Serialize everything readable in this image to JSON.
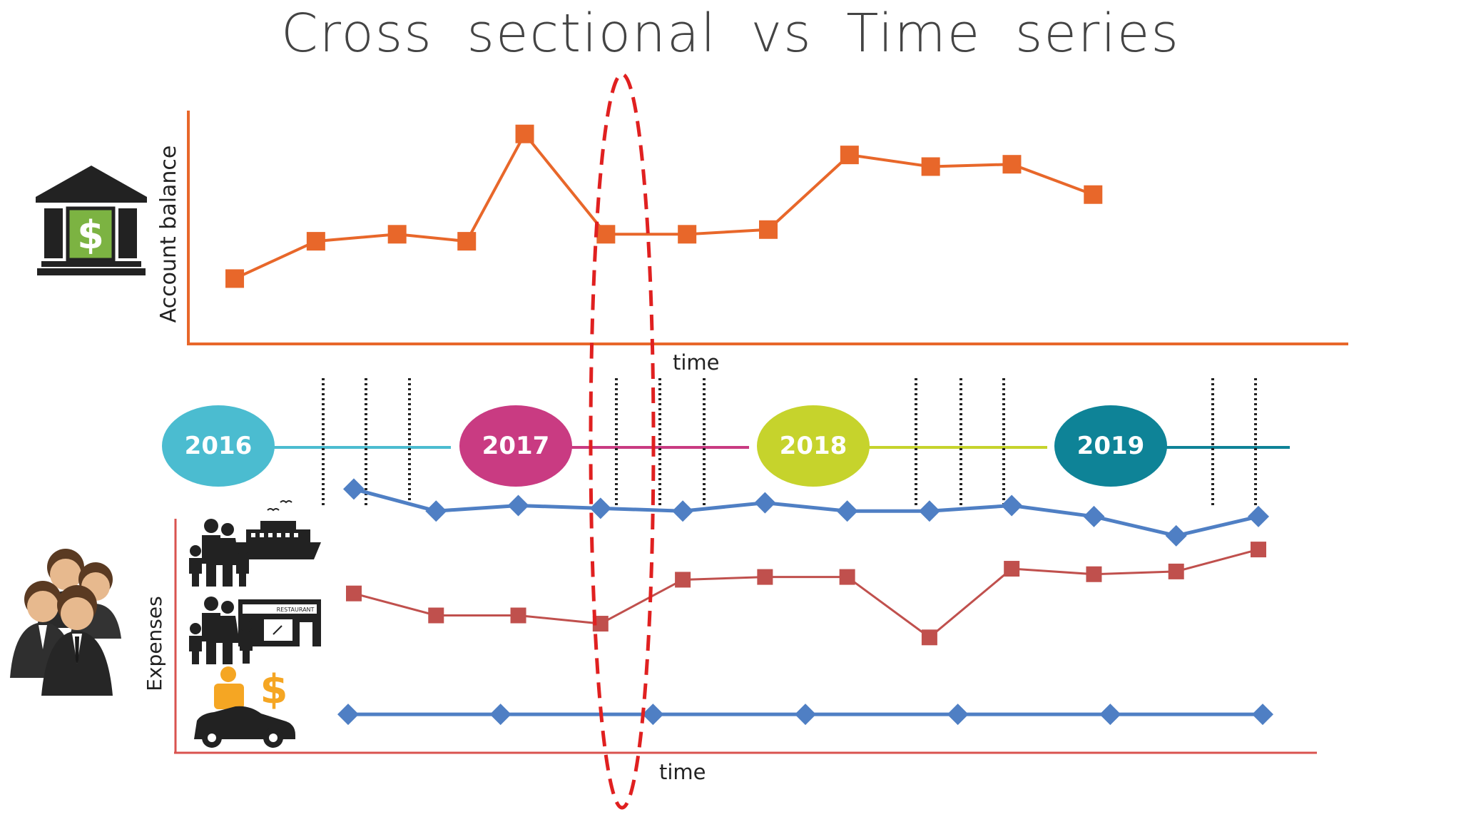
{
  "title": "Cross sectional vs Time series",
  "colors": {
    "balance": "#e8672a",
    "axis_top": "#e8672a",
    "axis_bottom": "#d9534f",
    "series_blue": "#4f7fc4",
    "series_red": "#c0504d",
    "highlight": "#e02020",
    "year_2016": "#4bbcd0",
    "year_2017": "#c93b82",
    "year_2018": "#c6d32c",
    "year_2019": "#0e8397",
    "icon_dark": "#222222",
    "icon_money": "#7cb342",
    "icon_orange": "#f5a623"
  },
  "chart_top": {
    "ylabel": "Account balance",
    "xlabel": "time"
  },
  "timeline": {
    "years": [
      "2016",
      "2017",
      "2018",
      "2019"
    ]
  },
  "chart_bottom": {
    "ylabel": "Expenses",
    "xlabel": "time"
  },
  "icons": {
    "bank": "bank-building-dollar-icon",
    "people": "business-people-group-icon",
    "travel": "family-cruise-ship-icon",
    "restaurant": "family-restaurant-icon",
    "car": "person-car-dollar-icon",
    "restaurant_sign": "RESTAURANT"
  },
  "chart_data": [
    {
      "type": "line",
      "title": "",
      "ylabel": "Account balance",
      "xlabel": "time",
      "series": [
        {
          "marker": "square",
          "values": [
            {
              "x": 0.4,
              "y": 0.28
            },
            {
              "x": 1.1,
              "y": 0.44
            },
            {
              "x": 1.8,
              "y": 0.47
            },
            {
              "x": 2.4,
              "y": 0.44
            },
            {
              "x": 2.9,
              "y": 0.9
            },
            {
              "x": 3.6,
              "y": 0.47
            },
            {
              "x": 4.3,
              "y": 0.47
            },
            {
              "x": 5.0,
              "y": 0.49
            },
            {
              "x": 5.7,
              "y": 0.81
            },
            {
              "x": 6.4,
              "y": 0.76
            },
            {
              "x": 7.1,
              "y": 0.77
            },
            {
              "x": 7.8,
              "y": 0.64
            }
          ]
        }
      ]
    },
    {
      "type": "line",
      "title": "",
      "ylabel": "Expenses",
      "xlabel": "time",
      "series": [
        {
          "marker": "diamond",
          "values": [
            {
              "x": 0,
              "y": 0.96
            },
            {
              "x": 1,
              "y": 0.88
            },
            {
              "x": 2,
              "y": 0.9
            },
            {
              "x": 3,
              "y": 0.89
            },
            {
              "x": 4,
              "y": 0.88
            },
            {
              "x": 5,
              "y": 0.91
            },
            {
              "x": 6,
              "y": 0.88
            },
            {
              "x": 7,
              "y": 0.88
            },
            {
              "x": 8,
              "y": 0.9
            },
            {
              "x": 9,
              "y": 0.86
            },
            {
              "x": 10,
              "y": 0.79
            },
            {
              "x": 11,
              "y": 0.86
            }
          ]
        },
        {
          "marker": "square",
          "values": [
            {
              "x": 0,
              "y": 0.58
            },
            {
              "x": 1,
              "y": 0.5
            },
            {
              "x": 2,
              "y": 0.5
            },
            {
              "x": 3,
              "y": 0.47
            },
            {
              "x": 4,
              "y": 0.63
            },
            {
              "x": 5,
              "y": 0.64
            },
            {
              "x": 6,
              "y": 0.64
            },
            {
              "x": 7,
              "y": 0.42
            },
            {
              "x": 8,
              "y": 0.67
            },
            {
              "x": 9,
              "y": 0.65
            },
            {
              "x": 10,
              "y": 0.66
            },
            {
              "x": 11,
              "y": 0.74
            }
          ]
        },
        {
          "marker": "diamond",
          "values": [
            {
              "x": 0,
              "y": 0.14
            },
            {
              "x": 2,
              "y": 0.14
            },
            {
              "x": 4,
              "y": 0.14
            },
            {
              "x": 6,
              "y": 0.14
            },
            {
              "x": 8,
              "y": 0.14
            },
            {
              "x": 10,
              "y": 0.14
            },
            {
              "x": 12,
              "y": 0.14
            }
          ]
        }
      ]
    }
  ]
}
